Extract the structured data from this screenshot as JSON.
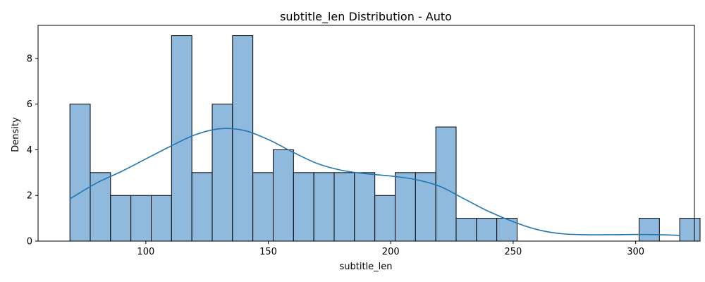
{
  "chart_data": {
    "type": "bar",
    "title": "subtitle_len Distribution - Auto",
    "xlabel": "subtitle_len",
    "ylabel": "Density",
    "xlim": [
      56,
      324
    ],
    "ylim": [
      0,
      9.45
    ],
    "xticks": [
      100,
      150,
      200,
      250,
      300
    ],
    "yticks": [
      0,
      2,
      4,
      6,
      8
    ],
    "grid": false,
    "bins": {
      "start": 69,
      "width": 8.3,
      "counts": [
        6,
        3,
        2,
        2,
        2,
        9,
        3,
        6,
        9,
        3,
        4,
        3,
        3,
        3,
        3,
        2,
        3,
        3,
        5,
        1,
        1,
        1,
        0,
        0,
        0,
        0,
        0,
        0,
        1,
        0,
        1
      ]
    },
    "kde": {
      "x": [
        69,
        80,
        90,
        100,
        110,
        120,
        130,
        140,
        150,
        160,
        170,
        180,
        190,
        200,
        210,
        220,
        230,
        240,
        250,
        260,
        270,
        280,
        290,
        300,
        310,
        318
      ],
      "y": [
        1.85,
        2.55,
        3.05,
        3.6,
        4.15,
        4.65,
        4.92,
        4.85,
        4.45,
        3.9,
        3.4,
        3.1,
        2.95,
        2.85,
        2.7,
        2.4,
        1.85,
        1.3,
        0.85,
        0.5,
        0.32,
        0.28,
        0.28,
        0.29,
        0.28,
        0.25
      ]
    },
    "colors": {
      "bar_fill": "#8fb9dd",
      "bar_edge": "#000000",
      "kde_line": "#1f77b4"
    }
  }
}
